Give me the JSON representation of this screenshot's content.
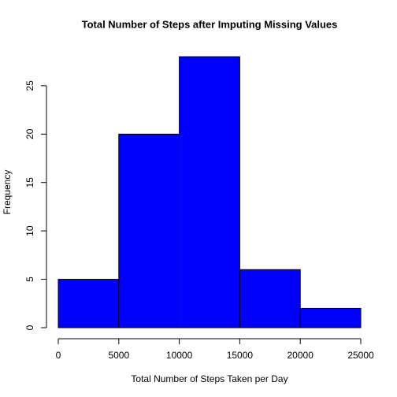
{
  "chart_data": {
    "type": "histogram",
    "title": "Total Number of Steps after Imputing Missing Values",
    "x_label": "Total Number of Steps Taken per Day",
    "y_label": "Frequency",
    "bins": [
      0,
      5000,
      10000,
      15000,
      20000,
      25000
    ],
    "values": [
      5,
      20,
      28,
      6,
      2
    ],
    "color": "#0000ff",
    "xlim": [
      0,
      25000
    ],
    "xticks": [
      0,
      5000,
      10000,
      15000,
      20000,
      25000
    ],
    "ylim": [
      0,
      28
    ],
    "yticks": [
      0,
      5,
      10,
      15,
      20,
      25
    ]
  }
}
